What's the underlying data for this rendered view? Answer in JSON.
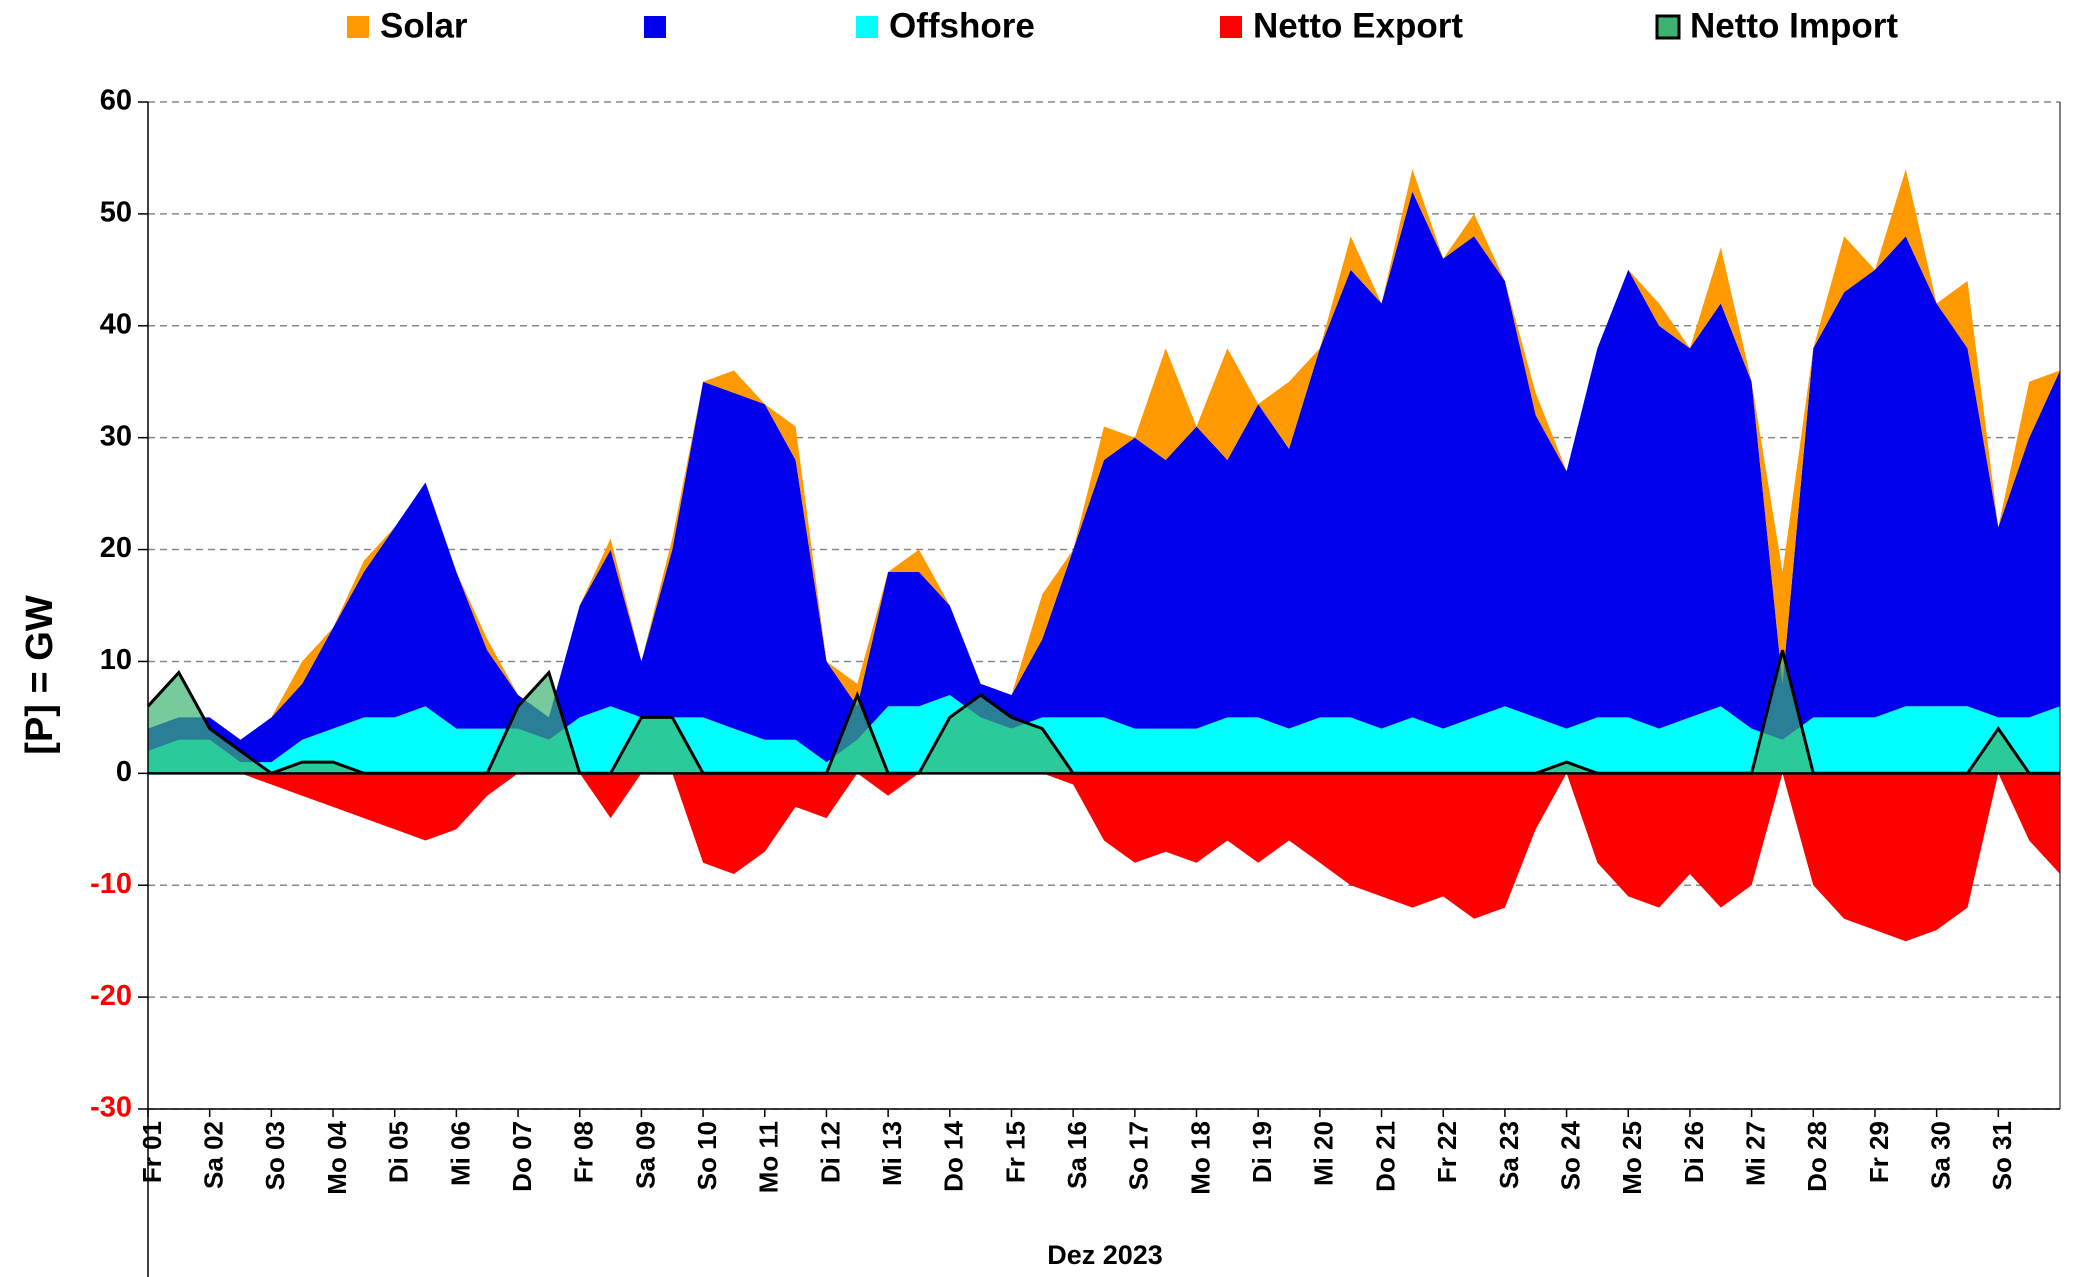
{
  "chart_data": {
    "type": "area",
    "y_label": "[P] = GW",
    "x_label": "Dez 2023",
    "categories": [
      "Fr 01",
      null,
      "Sa 02",
      null,
      "So 03",
      null,
      "Mo 04",
      null,
      "Di 05",
      null,
      "Mi 06",
      null,
      "Do 07",
      null,
      "Fr 08",
      null,
      "Sa 09",
      null,
      "So 10",
      null,
      "Mo 11",
      null,
      "Di 12",
      null,
      "Mi 13",
      null,
      "Do 14",
      null,
      "Fr 15",
      null,
      "Sa 16",
      null,
      "So 17",
      null,
      "Mo 18",
      null,
      "Di 19",
      null,
      "Mi 20",
      null,
      "Do 21",
      null,
      "Fr 22",
      null,
      "Sa 23",
      null,
      "So 24",
      null,
      "Mo 25",
      null,
      "Di 26",
      null,
      "Mi 27",
      null,
      "Do 28",
      null,
      "Fr 29",
      null,
      "Sa 30",
      null,
      "So 31",
      null,
      null
    ],
    "series": [
      {
        "name": "Solar",
        "color": "#ff9900",
        "stacked": true,
        "values": [
          0,
          0,
          0,
          0,
          0,
          2,
          0,
          1,
          0,
          0,
          0,
          1,
          0,
          0,
          0,
          1,
          0,
          1,
          0,
          2,
          0,
          3,
          0,
          2,
          0,
          2,
          0,
          0,
          0,
          4,
          0,
          3,
          0,
          10,
          0,
          10,
          0,
          6,
          0,
          3,
          0,
          2,
          0,
          2,
          0,
          2,
          0,
          0,
          0,
          2,
          0,
          5,
          0,
          10,
          0,
          5,
          0,
          6,
          0,
          6,
          0,
          5,
          0
        ]
      },
      {
        "color": "#0000ee",
        "stacked": true,
        "values": [
          2,
          2,
          2,
          2,
          4,
          5,
          9,
          13,
          17,
          20,
          14,
          7,
          3,
          2,
          10,
          14,
          5,
          15,
          30,
          30,
          30,
          25,
          9,
          3,
          12,
          12,
          8,
          3,
          3,
          7,
          15,
          23,
          26,
          24,
          27,
          23,
          28,
          25,
          33,
          40,
          38,
          47,
          42,
          43,
          38,
          27,
          23,
          33,
          40,
          36,
          33,
          36,
          31,
          5,
          33,
          38,
          40,
          42,
          36,
          32,
          17,
          25,
          30
        ]
      },
      {
        "name": "Offshore",
        "color": "#00ffff",
        "stacked": true,
        "values": [
          2,
          3,
          3,
          1,
          1,
          3,
          4,
          5,
          5,
          6,
          4,
          4,
          4,
          3,
          5,
          6,
          5,
          5,
          5,
          4,
          3,
          3,
          1,
          3,
          6,
          6,
          7,
          5,
          4,
          5,
          5,
          5,
          4,
          4,
          4,
          5,
          5,
          4,
          5,
          5,
          4,
          5,
          4,
          5,
          6,
          5,
          4,
          5,
          5,
          4,
          5,
          6,
          4,
          3,
          5,
          5,
          5,
          6,
          6,
          6,
          5,
          5,
          6
        ]
      },
      {
        "name": "Netto Export",
        "color": "#ff0000",
        "values": [
          0,
          0,
          0,
          0,
          -1,
          -2,
          -3,
          -4,
          -5,
          -6,
          -5,
          -2,
          0,
          0,
          0,
          -4,
          0,
          0,
          -8,
          -9,
          -7,
          -3,
          -4,
          0,
          -2,
          0,
          0,
          0,
          0,
          0,
          -1,
          -6,
          -8,
          -7,
          -8,
          -6,
          -8,
          -6,
          -8,
          -10,
          -11,
          -12,
          -11,
          -13,
          -12,
          -5,
          0,
          -8,
          -11,
          -12,
          -9,
          -12,
          -10,
          0,
          -10,
          -13,
          -14,
          -15,
          -14,
          -12,
          0,
          -6,
          -9
        ]
      },
      {
        "name": "Netto Import",
        "color": "#3cb371",
        "line_color": "#000000",
        "values": [
          6,
          9,
          4,
          2,
          0,
          1,
          1,
          0,
          0,
          0,
          0,
          0,
          6,
          9,
          0,
          0,
          5,
          5,
          0,
          0,
          0,
          0,
          0,
          7,
          0,
          0,
          5,
          7,
          5,
          4,
          0,
          0,
          0,
          0,
          0,
          0,
          0,
          0,
          0,
          0,
          0,
          0,
          0,
          0,
          0,
          0,
          1,
          0,
          0,
          0,
          0,
          0,
          0,
          11,
          0,
          0,
          0,
          0,
          0,
          0,
          4,
          0,
          0
        ]
      }
    ],
    "ylim": [
      -30,
      60
    ],
    "yticks": [
      -30,
      -20,
      -10,
      0,
      10,
      20,
      30,
      40,
      50,
      60
    ],
    "grid": true,
    "legend": "top"
  }
}
